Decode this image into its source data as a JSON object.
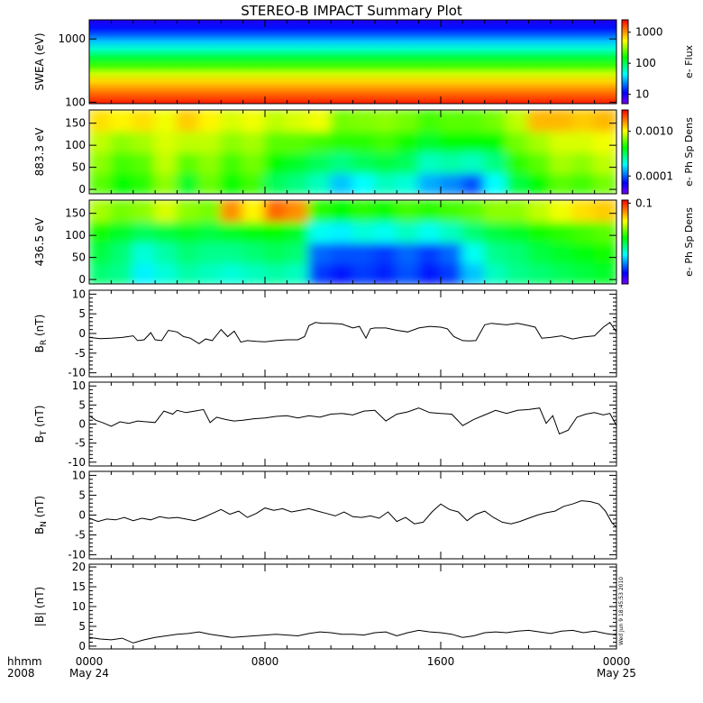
{
  "title": "STEREO-B IMPACT Summary Plot",
  "stamp": "Wed Jun  9 18:45:53 2010",
  "x_axis": {
    "row1_label": "hhmm",
    "row2_label": "2008",
    "ticks": [
      {
        "value": 0,
        "label": "0000",
        "sublabel": "May 24"
      },
      {
        "value": 8,
        "label": "0800",
        "sublabel": ""
      },
      {
        "value": 16,
        "label": "1600",
        "sublabel": ""
      },
      {
        "value": 24,
        "label": "0000",
        "sublabel": "May 25"
      }
    ],
    "range_hours": [
      0,
      24
    ]
  },
  "chart_data": [
    {
      "id": "swea",
      "type": "heatmap",
      "ylabel": "SWEA (eV)",
      "y_scale": "log",
      "ylim": [
        95,
        2000
      ],
      "yticks": [
        {
          "value": 100,
          "label": "100"
        },
        {
          "value": 1000,
          "label": "1000"
        }
      ],
      "colorbar_label": "e- Flux",
      "colorbar_scale": "log",
      "colorbar_range": [
        5,
        2500
      ],
      "colorbar_ticks": [
        {
          "value": 10,
          "label": "10"
        },
        {
          "value": 100,
          "label": "100"
        },
        {
          "value": 1000,
          "label": "1000"
        }
      ]
    },
    {
      "id": "pad883",
      "type": "heatmap",
      "ylabel": "883.3 eV",
      "ylim": [
        -10,
        180
      ],
      "yticks": [
        {
          "value": 0,
          "label": "0"
        },
        {
          "value": 50,
          "label": "50"
        },
        {
          "value": 100,
          "label": "100"
        },
        {
          "value": 150,
          "label": "150"
        }
      ],
      "colorbar_label": "e- Ph Sp Dens",
      "colorbar_scale": "log",
      "colorbar_range": [
        4e-05,
        0.003
      ],
      "colorbar_ticks": [
        {
          "value": 0.0001,
          "label": "0.0001"
        },
        {
          "value": 0.001,
          "label": "0.0010"
        }
      ],
      "cells_hours": [
        0.5,
        1.5,
        2.5,
        3.5,
        4.5,
        5.5,
        6.5,
        7.5,
        8.5,
        9.5,
        10.5,
        11.5,
        12.5,
        13.5,
        14.5,
        15.5,
        16.5,
        17.5,
        18.5,
        19.5,
        20.5,
        21.5,
        22.5,
        23.5
      ],
      "cells_angle": [
        15,
        60,
        105,
        150
      ],
      "cells_norm": [
        [
          0.62,
          0.55,
          0.58,
          0.66,
          0.52,
          0.63,
          0.55,
          0.6,
          0.48,
          0.45,
          0.4,
          0.3,
          0.35,
          0.4,
          0.38,
          0.28,
          0.25,
          0.2,
          0.35,
          0.5,
          0.55,
          0.62,
          0.6,
          0.64
        ],
        [
          0.66,
          0.6,
          0.62,
          0.7,
          0.62,
          0.66,
          0.6,
          0.64,
          0.55,
          0.52,
          0.48,
          0.45,
          0.48,
          0.5,
          0.48,
          0.4,
          0.42,
          0.4,
          0.45,
          0.58,
          0.62,
          0.68,
          0.66,
          0.7
        ],
        [
          0.7,
          0.66,
          0.68,
          0.72,
          0.7,
          0.7,
          0.66,
          0.68,
          0.62,
          0.62,
          0.6,
          0.58,
          0.58,
          0.6,
          0.56,
          0.52,
          0.55,
          0.55,
          0.55,
          0.64,
          0.68,
          0.72,
          0.72,
          0.74
        ],
        [
          0.78,
          0.76,
          0.78,
          0.74,
          0.8,
          0.76,
          0.72,
          0.74,
          0.7,
          0.72,
          0.74,
          0.64,
          0.65,
          0.66,
          0.64,
          0.6,
          0.62,
          0.62,
          0.64,
          0.7,
          0.82,
          0.82,
          0.8,
          0.82
        ]
      ]
    },
    {
      "id": "pad436",
      "type": "heatmap",
      "ylabel": "436.5 eV",
      "ylim": [
        -10,
        180
      ],
      "yticks": [
        {
          "value": 0,
          "label": "0"
        },
        {
          "value": 50,
          "label": "50"
        },
        {
          "value": 100,
          "label": "100"
        },
        {
          "value": 150,
          "label": "150"
        }
      ],
      "colorbar_label": "e- Ph Sp Dens",
      "colorbar_scale": "log",
      "colorbar_range": [
        0.008,
        0.11
      ],
      "colorbar_ticks": [
        {
          "value": 0.1,
          "label": "0.1"
        }
      ],
      "cells_hours": [
        0.5,
        1.5,
        2.5,
        3.5,
        4.5,
        5.5,
        6.5,
        7.5,
        8.5,
        9.5,
        10.5,
        11.5,
        12.5,
        13.5,
        14.5,
        15.5,
        16.5,
        17.5,
        18.5,
        19.5,
        20.5,
        21.5,
        22.5,
        23.5
      ],
      "cells_angle": [
        15,
        60,
        105,
        150
      ],
      "cells_norm": [
        [
          0.46,
          0.44,
          0.34,
          0.38,
          0.42,
          0.4,
          0.38,
          0.4,
          0.42,
          0.4,
          0.18,
          0.15,
          0.18,
          0.16,
          0.2,
          0.15,
          0.18,
          0.3,
          0.4,
          0.44,
          0.46,
          0.48,
          0.5,
          0.52
        ],
        [
          0.5,
          0.46,
          0.38,
          0.42,
          0.46,
          0.44,
          0.44,
          0.46,
          0.48,
          0.46,
          0.22,
          0.2,
          0.2,
          0.18,
          0.22,
          0.18,
          0.22,
          0.36,
          0.44,
          0.46,
          0.5,
          0.52,
          0.54,
          0.56
        ],
        [
          0.56,
          0.52,
          0.48,
          0.5,
          0.52,
          0.5,
          0.52,
          0.54,
          0.55,
          0.52,
          0.36,
          0.34,
          0.38,
          0.36,
          0.4,
          0.36,
          0.4,
          0.46,
          0.5,
          0.52,
          0.56,
          0.58,
          0.6,
          0.62
        ],
        [
          0.68,
          0.64,
          0.66,
          0.72,
          0.66,
          0.64,
          0.86,
          0.76,
          0.9,
          0.86,
          0.58,
          0.55,
          0.58,
          0.56,
          0.6,
          0.58,
          0.6,
          0.62,
          0.66,
          0.66,
          0.7,
          0.74,
          0.78,
          0.8
        ]
      ]
    },
    {
      "id": "br",
      "type": "line",
      "ylabel": "B",
      "ylabel_sub": "R",
      "ylabel_unit": " (nT)",
      "ylim": [
        -11,
        11
      ],
      "yticks": [
        {
          "value": -10,
          "label": "-10"
        },
        {
          "value": -5,
          "label": "-5"
        },
        {
          "value": 0,
          "label": "0"
        },
        {
          "value": 5,
          "label": "5"
        },
        {
          "value": 10,
          "label": "10"
        }
      ],
      "x": [
        0,
        0.5,
        1,
        1.5,
        2,
        2.2,
        2.5,
        2.8,
        3,
        3.3,
        3.6,
        4,
        4.3,
        4.6,
        5,
        5.3,
        5.6,
        6,
        6.3,
        6.6,
        6.9,
        7.2,
        7.6,
        8,
        8.5,
        9,
        9.5,
        9.8,
        10,
        10.3,
        10.6,
        11,
        11.5,
        11.8,
        12,
        12.3,
        12.6,
        12.8,
        13,
        13.5,
        14,
        14.5,
        15,
        15.5,
        16,
        16.3,
        16.6,
        17,
        17.3,
        17.6,
        18,
        18.3,
        18.6,
        19,
        19.5,
        20,
        20.3,
        20.6,
        21,
        21.5,
        22,
        22.5,
        23,
        23.4,
        23.7,
        24
      ],
      "y": [
        -1,
        -1.3,
        -1.2,
        -1,
        -0.6,
        -1.8,
        -1.6,
        0.2,
        -1.6,
        -1.8,
        0.8,
        0.4,
        -0.8,
        -1.2,
        -2.6,
        -1.4,
        -1.8,
        1.0,
        -0.8,
        0.6,
        -2.2,
        -1.8,
        -2.0,
        -2.1,
        -1.8,
        -1.6,
        -1.6,
        -0.8,
        2.0,
        2.8,
        2.6,
        2.6,
        2.4,
        1.8,
        1.4,
        1.8,
        -1.2,
        1.2,
        1.4,
        1.4,
        0.8,
        0.4,
        1.4,
        1.8,
        1.6,
        1.2,
        -0.8,
        -1.8,
        -1.9,
        -1.8,
        2.2,
        2.6,
        2.4,
        2.2,
        2.6,
        2.0,
        1.6,
        -1.2,
        -1.0,
        -0.6,
        -1.4,
        -0.9,
        -0.6,
        1.6,
        2.8,
        0.4
      ]
    },
    {
      "id": "bt",
      "type": "line",
      "ylabel": "B",
      "ylabel_sub": "T",
      "ylabel_unit": " (nT)",
      "ylim": [
        -11,
        11
      ],
      "yticks": [
        {
          "value": -10,
          "label": "-10"
        },
        {
          "value": -5,
          "label": "-5"
        },
        {
          "value": 0,
          "label": "0"
        },
        {
          "value": 5,
          "label": "5"
        },
        {
          "value": 10,
          "label": "10"
        }
      ],
      "x": [
        0,
        0.3,
        0.6,
        1,
        1.4,
        1.8,
        2.2,
        2.6,
        3,
        3.4,
        3.8,
        4,
        4.4,
        4.8,
        5.2,
        5.5,
        5.8,
        6.2,
        6.6,
        7,
        7.5,
        8,
        8.5,
        9,
        9.5,
        10,
        10.5,
        11,
        11.5,
        12,
        12.5,
        13,
        13.5,
        14,
        14.5,
        15,
        15.5,
        16,
        16.5,
        17,
        17.5,
        18,
        18.5,
        19,
        19.5,
        20,
        20.5,
        20.8,
        21.1,
        21.4,
        21.8,
        22.2,
        22.6,
        23,
        23.4,
        23.7,
        24
      ],
      "y": [
        2.2,
        1.0,
        0.4,
        -0.6,
        0.6,
        0.2,
        0.8,
        0.6,
        0.4,
        3.4,
        2.6,
        3.6,
        3.0,
        3.4,
        3.8,
        0.4,
        1.8,
        1.2,
        0.8,
        1.0,
        1.4,
        1.6,
        2.0,
        2.2,
        1.6,
        2.2,
        1.8,
        2.6,
        2.8,
        2.4,
        3.4,
        3.6,
        0.8,
        2.6,
        3.2,
        4.2,
        3.0,
        2.8,
        2.6,
        -0.4,
        1.2,
        2.4,
        3.6,
        2.8,
        3.6,
        3.8,
        4.2,
        0.2,
        2.2,
        -2.6,
        -1.6,
        1.8,
        2.6,
        3.0,
        2.4,
        2.8,
        -0.4
      ]
    },
    {
      "id": "bn",
      "type": "line",
      "ylabel": "B",
      "ylabel_sub": "N",
      "ylabel_unit": " (nT)",
      "ylim": [
        -11,
        11
      ],
      "yticks": [
        {
          "value": -10,
          "label": "-10"
        },
        {
          "value": -5,
          "label": "-5"
        },
        {
          "value": 0,
          "label": "0"
        },
        {
          "value": 5,
          "label": "5"
        },
        {
          "value": 10,
          "label": "10"
        }
      ],
      "x": [
        0,
        0.4,
        0.8,
        1.2,
        1.6,
        2,
        2.4,
        2.8,
        3.2,
        3.6,
        4,
        4.4,
        4.8,
        5.2,
        5.6,
        6,
        6.4,
        6.8,
        7.2,
        7.6,
        8,
        8.4,
        8.8,
        9.2,
        9.6,
        10,
        10.4,
        10.8,
        11.2,
        11.6,
        12,
        12.4,
        12.8,
        13.2,
        13.6,
        14,
        14.4,
        14.8,
        15.2,
        15.6,
        16,
        16.4,
        16.8,
        17.2,
        17.6,
        18,
        18.4,
        18.8,
        19.2,
        19.6,
        20,
        20.4,
        20.8,
        21.2,
        21.6,
        22,
        22.4,
        22.8,
        23.2,
        23.5,
        23.8,
        24
      ],
      "y": [
        -0.8,
        -1.6,
        -1.0,
        -1.2,
        -0.6,
        -1.4,
        -0.8,
        -1.2,
        -0.4,
        -0.8,
        -0.6,
        -1.0,
        -1.4,
        -0.6,
        0.4,
        1.4,
        0.2,
        1.0,
        -0.6,
        0.4,
        1.8,
        1.2,
        1.6,
        0.8,
        1.2,
        1.6,
        1.0,
        0.4,
        -0.2,
        0.8,
        -0.4,
        -0.6,
        -0.2,
        -0.8,
        0.8,
        -1.6,
        -0.6,
        -2.2,
        -1.8,
        0.8,
        2.8,
        1.4,
        0.8,
        -1.4,
        0.2,
        1.0,
        -0.6,
        -1.8,
        -2.2,
        -1.6,
        -0.8,
        0.0,
        0.6,
        1.0,
        2.2,
        2.8,
        3.6,
        3.4,
        2.8,
        1.0,
        -2.0,
        -3.0
      ]
    },
    {
      "id": "bmag",
      "type": "line",
      "ylabel": "|B| (nT)",
      "ylim": [
        -0.7,
        20.7
      ],
      "yticks": [
        {
          "value": 0,
          "label": "0"
        },
        {
          "value": 5,
          "label": "5"
        },
        {
          "value": 10,
          "label": "10"
        },
        {
          "value": 15,
          "label": "15"
        },
        {
          "value": 20,
          "label": "20"
        }
      ],
      "x": [
        0,
        0.5,
        1,
        1.5,
        2,
        2.5,
        3,
        3.5,
        4,
        4.5,
        5,
        5.5,
        6,
        6.5,
        7,
        7.5,
        8,
        8.5,
        9,
        9.5,
        10,
        10.5,
        11,
        11.5,
        12,
        12.5,
        13,
        13.5,
        14,
        14.5,
        15,
        15.5,
        16,
        16.5,
        17,
        17.5,
        18,
        18.5,
        19,
        19.5,
        20,
        20.5,
        21,
        21.5,
        22,
        22.5,
        23,
        23.5,
        24
      ],
      "y": [
        2.2,
        1.8,
        1.6,
        2.0,
        0.8,
        1.6,
        2.2,
        2.6,
        3.0,
        3.2,
        3.6,
        3.0,
        2.6,
        2.2,
        2.4,
        2.6,
        2.8,
        3.0,
        2.8,
        2.6,
        3.2,
        3.6,
        3.4,
        3.0,
        3.0,
        2.8,
        3.4,
        3.6,
        2.6,
        3.4,
        4.0,
        3.6,
        3.4,
        3.0,
        2.2,
        2.6,
        3.4,
        3.6,
        3.4,
        3.8,
        4.0,
        3.6,
        3.2,
        3.8,
        4.0,
        3.4,
        3.8,
        3.2,
        2.8
      ]
    }
  ]
}
